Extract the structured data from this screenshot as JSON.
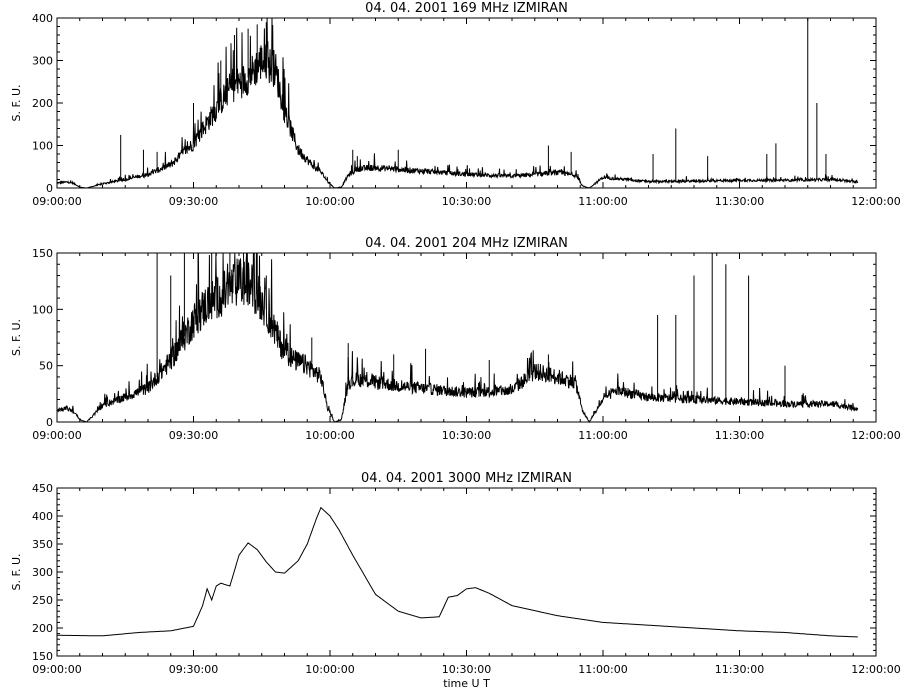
{
  "chart_data": [
    {
      "type": "line",
      "title": "04. 04. 2001   169 MHz   IZMIRAN",
      "ylabel": "S. F. U.",
      "xlabel": "",
      "xlim": [
        "09:00:00",
        "12:00:00"
      ],
      "ylim": [
        0,
        400
      ],
      "xticks": [
        "09:00:00",
        "09:30:00",
        "10:00:00",
        "10:30:00",
        "11:00:00",
        "11:30:00",
        "12:00:00"
      ],
      "yticks": [
        0,
        100,
        200,
        300,
        400
      ],
      "noise": 0.16,
      "series": [
        {
          "x": [
            "09:00:00",
            "09:02:00",
            "09:03:30",
            "09:05:00",
            "09:06:30",
            "09:08:00",
            "09:10:00",
            "09:15:00",
            "09:20:00",
            "09:25:00",
            "09:30:00",
            "09:34:00",
            "09:38:00",
            "09:42:00",
            "09:45:00",
            "09:48:00",
            "09:50:00",
            "09:53:00",
            "09:56:00",
            "09:58:00",
            "09:59:30",
            "10:01:00",
            "10:02:30",
            "10:04:00",
            "10:06:00",
            "10:10:00",
            "10:20:00",
            "10:30:00",
            "10:40:00",
            "10:45:00",
            "10:50:00",
            "10:54:00",
            "10:55:30",
            "10:57:00",
            "11:00:00",
            "11:03:00",
            "11:10:00",
            "11:20:00",
            "11:30:00",
            "11:40:00",
            "11:50:00",
            "11:56:00"
          ],
          "values": [
            12,
            14,
            12,
            2,
            0,
            4,
            10,
            20,
            32,
            55,
            105,
            170,
            235,
            260,
            300,
            280,
            180,
            90,
            55,
            38,
            15,
            0,
            2,
            30,
            45,
            48,
            40,
            32,
            28,
            32,
            36,
            30,
            5,
            0,
            25,
            22,
            15,
            16,
            18,
            18,
            20,
            14
          ]
        }
      ],
      "spikes": [
        {
          "x": "09:14:00",
          "value": 125
        },
        {
          "x": "09:19:00",
          "value": 90
        },
        {
          "x": "09:22:00",
          "value": 85
        },
        {
          "x": "09:30:00",
          "value": 200
        },
        {
          "x": "09:36:00",
          "value": 300
        },
        {
          "x": "09:39:00",
          "value": 360
        },
        {
          "x": "09:42:00",
          "value": 375
        },
        {
          "x": "09:44:00",
          "value": 385
        },
        {
          "x": "09:46:00",
          "value": 390
        },
        {
          "x": "10:05:00",
          "value": 90
        },
        {
          "x": "10:06:00",
          "value": 75
        },
        {
          "x": "10:15:00",
          "value": 90
        },
        {
          "x": "10:48:00",
          "value": 100
        },
        {
          "x": "10:53:00",
          "value": 85
        },
        {
          "x": "11:11:00",
          "value": 80
        },
        {
          "x": "11:16:00",
          "value": 140
        },
        {
          "x": "11:23:00",
          "value": 75
        },
        {
          "x": "11:36:00",
          "value": 80
        },
        {
          "x": "11:38:00",
          "value": 105
        },
        {
          "x": "11:45:00",
          "value": 400
        },
        {
          "x": "11:47:00",
          "value": 200
        },
        {
          "x": "11:49:00",
          "value": 80
        }
      ]
    },
    {
      "type": "line",
      "title": "04. 04. 2001   204 MHz   IZMIRAN",
      "ylabel": "S. F. U.",
      "xlabel": "",
      "xlim": [
        "09:00:00",
        "12:00:00"
      ],
      "ylim": [
        0,
        150
      ],
      "xticks": [
        "09:00:00",
        "09:30:00",
        "10:00:00",
        "10:30:00",
        "11:00:00",
        "11:30:00",
        "12:00:00"
      ],
      "yticks": [
        0,
        50,
        100,
        150
      ],
      "noise": 0.18,
      "series": [
        {
          "x": [
            "09:00:00",
            "09:02:00",
            "09:03:30",
            "09:05:00",
            "09:06:30",
            "09:08:00",
            "09:10:00",
            "09:15:00",
            "09:20:00",
            "09:25:00",
            "09:30:00",
            "09:33:00",
            "09:37:00",
            "09:40:00",
            "09:43:00",
            "09:46:00",
            "09:49:00",
            "09:52:00",
            "09:55:00",
            "09:58:00",
            "09:59:30",
            "10:01:00",
            "10:02:30",
            "10:04:00",
            "10:06:00",
            "10:15:00",
            "10:30:00",
            "10:40:00",
            "10:45:00",
            "10:50:00",
            "10:54:00",
            "10:55:30",
            "10:57:00",
            "11:00:00",
            "11:03:00",
            "11:10:00",
            "11:20:00",
            "11:30:00",
            "11:40:00",
            "11:50:00",
            "11:56:00"
          ],
          "values": [
            11,
            12,
            10,
            2,
            0,
            6,
            15,
            22,
            30,
            55,
            90,
            105,
            115,
            125,
            120,
            100,
            70,
            55,
            50,
            40,
            12,
            0,
            2,
            35,
            38,
            32,
            26,
            28,
            45,
            40,
            35,
            10,
            0,
            20,
            28,
            22,
            20,
            18,
            16,
            16,
            12
          ]
        }
      ],
      "spikes": [
        {
          "x": "09:22:00",
          "value": 150
        },
        {
          "x": "09:25:00",
          "value": 130
        },
        {
          "x": "09:28:00",
          "value": 150
        },
        {
          "x": "09:31:00",
          "value": 150
        },
        {
          "x": "09:34:00",
          "value": 150
        },
        {
          "x": "09:38:00",
          "value": 150
        },
        {
          "x": "09:41:00",
          "value": 150
        },
        {
          "x": "09:44:00",
          "value": 150
        },
        {
          "x": "09:46:00",
          "value": 130
        },
        {
          "x": "09:56:00",
          "value": 75
        },
        {
          "x": "10:04:00",
          "value": 70
        },
        {
          "x": "10:14:00",
          "value": 60
        },
        {
          "x": "10:21:00",
          "value": 65
        },
        {
          "x": "10:35:00",
          "value": 55
        },
        {
          "x": "10:48:00",
          "value": 60
        },
        {
          "x": "11:12:00",
          "value": 95
        },
        {
          "x": "11:16:00",
          "value": 95
        },
        {
          "x": "11:20:00",
          "value": 130
        },
        {
          "x": "11:24:00",
          "value": 150
        },
        {
          "x": "11:27:00",
          "value": 140
        },
        {
          "x": "11:32:00",
          "value": 130
        },
        {
          "x": "11:40:00",
          "value": 50
        }
      ]
    },
    {
      "type": "line",
      "title": "04. 04. 2001   3000 MHz   IZMIRAN",
      "ylabel": "S. F. U.",
      "xlabel": "time  U T",
      "xlim": [
        "09:00:00",
        "12:00:00"
      ],
      "ylim": [
        150,
        450
      ],
      "xticks": [
        "09:00:00",
        "09:30:00",
        "10:00:00",
        "10:30:00",
        "11:00:00",
        "11:30:00",
        "12:00:00"
      ],
      "yticks": [
        150,
        200,
        250,
        300,
        350,
        400,
        450
      ],
      "noise": 0.0,
      "series": [
        {
          "x": [
            "09:00:00",
            "09:10:00",
            "09:18:00",
            "09:25:00",
            "09:30:00",
            "09:32:00",
            "09:33:00",
            "09:34:00",
            "09:35:00",
            "09:36:00",
            "09:38:00",
            "09:40:00",
            "09:42:00",
            "09:44:00",
            "09:46:00",
            "09:48:00",
            "09:50:00",
            "09:53:00",
            "09:55:00",
            "09:57:00",
            "09:58:00",
            "10:00:00",
            "10:02:00",
            "10:05:00",
            "10:10:00",
            "10:15:00",
            "10:20:00",
            "10:24:00",
            "10:26:00",
            "10:28:00",
            "10:30:00",
            "10:32:00",
            "10:35:00",
            "10:40:00",
            "10:50:00",
            "11:00:00",
            "11:10:00",
            "11:20:00",
            "11:30:00",
            "11:40:00",
            "11:50:00",
            "11:56:00"
          ],
          "values": [
            187,
            186,
            192,
            195,
            203,
            240,
            270,
            250,
            275,
            280,
            275,
            330,
            352,
            340,
            318,
            300,
            298,
            320,
            350,
            395,
            415,
            400,
            375,
            330,
            260,
            230,
            218,
            220,
            255,
            258,
            270,
            272,
            262,
            240,
            222,
            210,
            205,
            200,
            195,
            192,
            186,
            184
          ]
        }
      ],
      "spikes": []
    }
  ]
}
